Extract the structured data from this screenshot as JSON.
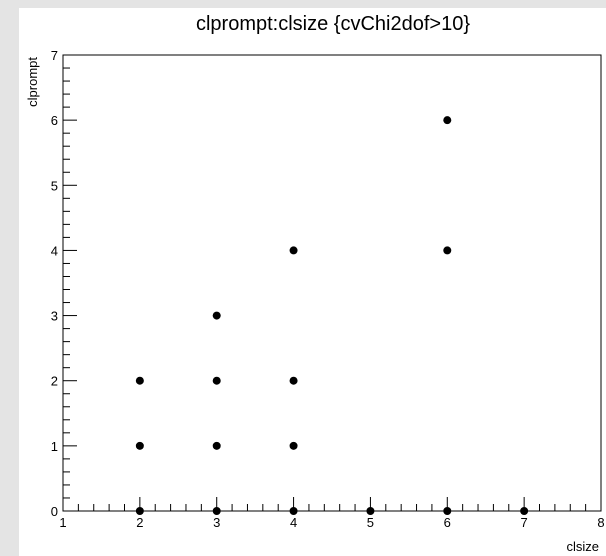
{
  "chart_data": {
    "type": "scatter",
    "title": "clprompt:clsize {cvChi2dof>10}",
    "xlabel": "clsize",
    "ylabel": "clprompt",
    "xlim": [
      1,
      8
    ],
    "ylim": [
      0,
      7
    ],
    "x_ticks": [
      "1",
      "2",
      "3",
      "4",
      "5",
      "6",
      "7",
      "8"
    ],
    "y_ticks": [
      "0",
      "1",
      "2",
      "3",
      "4",
      "5",
      "6",
      "7"
    ],
    "grid": false,
    "legend": "none",
    "marker_color": "#000000",
    "points": [
      {
        "x": 2,
        "y": 0
      },
      {
        "x": 2,
        "y": 1
      },
      {
        "x": 2,
        "y": 2
      },
      {
        "x": 3,
        "y": 0
      },
      {
        "x": 3,
        "y": 1
      },
      {
        "x": 3,
        "y": 2
      },
      {
        "x": 3,
        "y": 3
      },
      {
        "x": 4,
        "y": 0
      },
      {
        "x": 4,
        "y": 1
      },
      {
        "x": 4,
        "y": 2
      },
      {
        "x": 4,
        "y": 4
      },
      {
        "x": 5,
        "y": 0
      },
      {
        "x": 6,
        "y": 0
      },
      {
        "x": 6,
        "y": 4
      },
      {
        "x": 6,
        "y": 6
      },
      {
        "x": 7,
        "y": 0
      }
    ]
  }
}
